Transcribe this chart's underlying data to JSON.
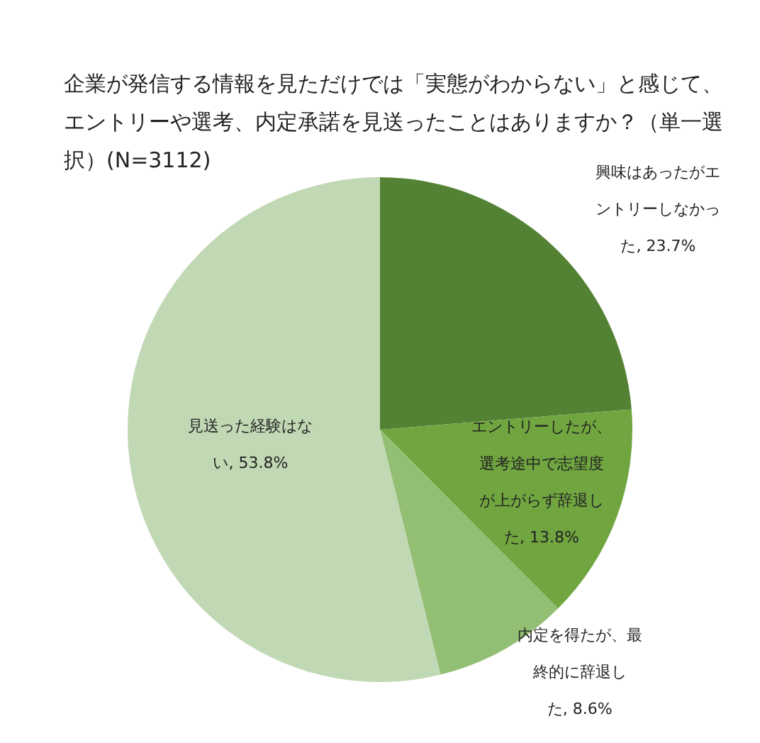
{
  "chart_data": {
    "type": "pie",
    "title": "企業が発信する情報を見ただけでは「実態がわからない」と感じて、エントリーや選考、内定承諾を見送ったことはありますか？（単一選択）(N=3112)",
    "categories": [
      "興味はあったがエントリーしなかった",
      "エントリーしたが、選考途中で志望度が上がらず辞退した",
      "内定を得たが、最終的に辞退した",
      "見送った経験はない"
    ],
    "values": [
      23.7,
      13.8,
      8.6,
      53.8
    ],
    "colors": [
      "#548235",
      "#70a540",
      "#93bf75",
      "#c1d8b4"
    ],
    "value_labels": [
      "23.7%",
      "13.8%",
      "8.6%",
      "53.8%"
    ]
  }
}
